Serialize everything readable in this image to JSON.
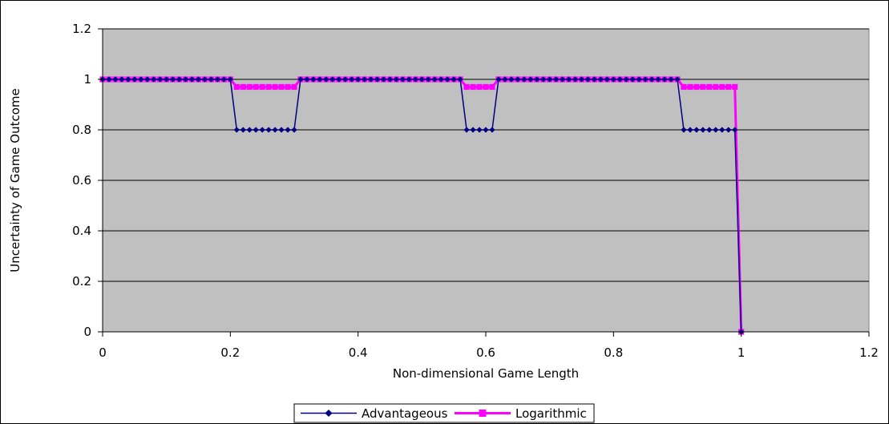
{
  "chart_data": {
    "type": "line",
    "title": "",
    "xlabel": "Non-dimensional Game Length",
    "ylabel": "Uncertainty of Game Outcome",
    "xlim": [
      0,
      1.2
    ],
    "ylim": [
      0,
      1.2
    ],
    "x_ticks": [
      "0",
      "0.2",
      "0.4",
      "0.6",
      "0.8",
      "1",
      "1.2"
    ],
    "y_ticks": [
      "0",
      "0.2",
      "0.4",
      "0.6",
      "0.8",
      "1",
      "1.2"
    ],
    "grid": "horizontal",
    "plot_background": "#c0c0c0",
    "legend_position": "bottom",
    "series": [
      {
        "name": "Advantageous",
        "color": "#000080",
        "marker": "diamond",
        "segments": [
          {
            "x_start": 0,
            "x_end": 0.2,
            "y": 1
          },
          {
            "x_start": 0.21,
            "x_end": 0.3,
            "y": 0.8
          },
          {
            "x_start": 0.31,
            "x_end": 0.56,
            "y": 1
          },
          {
            "x_start": 0.57,
            "x_end": 0.61,
            "y": 0.8
          },
          {
            "x_start": 0.62,
            "x_end": 0.9,
            "y": 1
          },
          {
            "x_start": 0.91,
            "x_end": 0.99,
            "y": 0.8
          },
          {
            "x_start": 1,
            "x_end": 1,
            "y": 0
          }
        ]
      },
      {
        "name": "Logarithmic",
        "color": "#ff00ff",
        "marker": "square",
        "segments": [
          {
            "x_start": 0,
            "x_end": 0.2,
            "y": 1
          },
          {
            "x_start": 0.21,
            "x_end": 0.3,
            "y": 0.97
          },
          {
            "x_start": 0.31,
            "x_end": 0.56,
            "y": 1
          },
          {
            "x_start": 0.57,
            "x_end": 0.61,
            "y": 0.97
          },
          {
            "x_start": 0.62,
            "x_end": 0.9,
            "y": 1
          },
          {
            "x_start": 0.91,
            "x_end": 0.99,
            "y": 0.97
          },
          {
            "x_start": 1,
            "x_end": 1,
            "y": 0
          }
        ]
      }
    ]
  }
}
